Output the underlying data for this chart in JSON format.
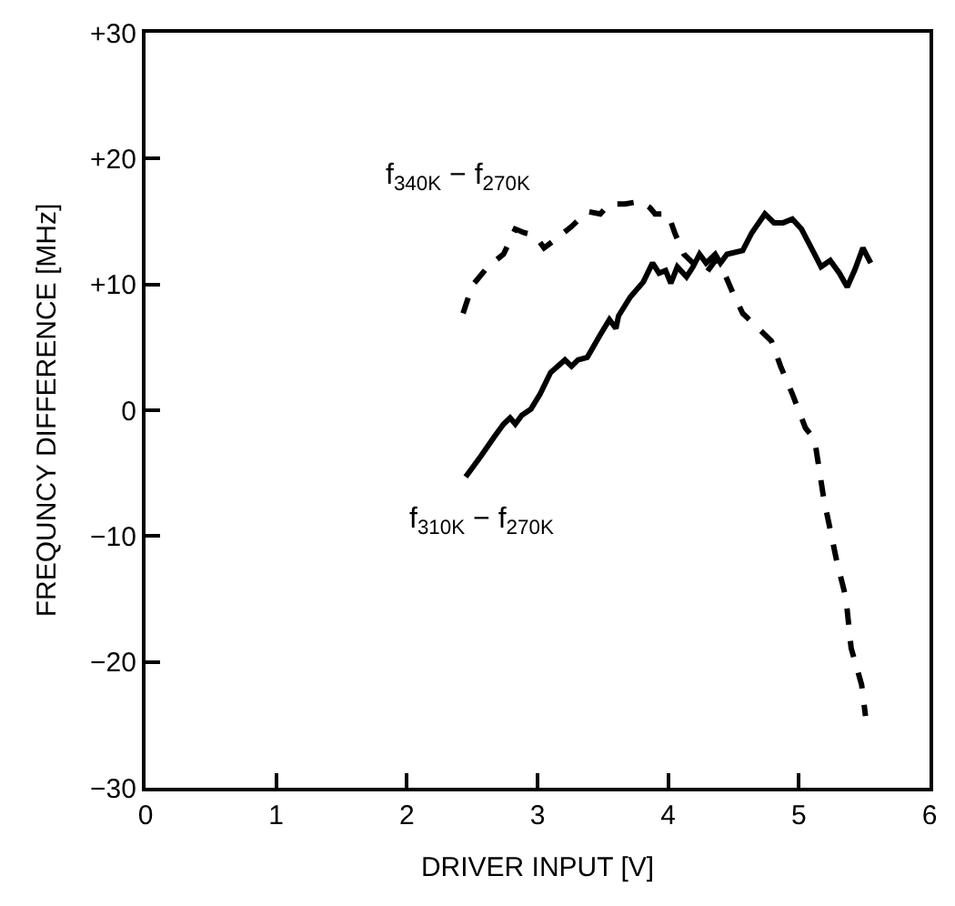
{
  "chart_data": {
    "type": "line",
    "xlabel": "DRIVER INPUT [V]",
    "ylabel": "FREQUNCY DIFFERENCE [MHz]",
    "xlim": [
      0,
      6
    ],
    "xticks": [
      0,
      1,
      2,
      3,
      4,
      5,
      6
    ],
    "ylim": [
      -30,
      30
    ],
    "yticks": [
      {
        "value": 30,
        "label": "+30"
      },
      {
        "value": 20,
        "label": "+20"
      },
      {
        "value": 10,
        "label": "+10"
      },
      0,
      {
        "value": -10,
        "label": "−10"
      },
      {
        "value": -20,
        "label": "−20"
      },
      {
        "value": -30,
        "label": "−30"
      }
    ],
    "marker": "none",
    "series": [
      {
        "color": "#000000",
        "line_style": "dashed",
        "x": [
          2.43,
          2.5,
          2.62,
          2.74,
          2.83,
          2.9,
          2.98,
          3.05,
          3.14,
          3.26,
          3.38,
          3.48,
          3.55,
          3.67,
          3.79,
          3.86,
          3.9,
          4.0,
          4.05,
          4.12,
          4.19,
          4.29,
          4.36,
          4.43,
          4.5,
          4.57,
          4.69,
          4.79,
          4.86,
          4.95,
          5.05,
          5.12,
          5.19,
          5.29,
          5.36,
          5.4,
          5.48,
          5.51
        ],
        "values": [
          7.7,
          9.9,
          11.4,
          12.4,
          14.4,
          14.1,
          13.9,
          12.9,
          13.6,
          14.6,
          15.8,
          15.6,
          16.4,
          16.4,
          16.6,
          16.1,
          15.6,
          15.6,
          14.1,
          12.4,
          11.7,
          10.9,
          11.9,
          10.9,
          9.2,
          7.7,
          6.5,
          5.5,
          3.5,
          1.3,
          -1.4,
          -2.3,
          -7.0,
          -12.0,
          -14.9,
          -18.9,
          -21.8,
          -24.3
        ]
      },
      {
        "color": "#000000",
        "line_style": "solid",
        "x": [
          2.45,
          2.57,
          2.67,
          2.74,
          2.79,
          2.83,
          2.88,
          2.95,
          3.02,
          3.1,
          3.21,
          3.26,
          3.31,
          3.38,
          3.48,
          3.55,
          3.6,
          3.62,
          3.71,
          3.81,
          3.88,
          3.93,
          3.98,
          4.02,
          4.07,
          4.14,
          4.19,
          4.24,
          4.29,
          4.36,
          4.4,
          4.45,
          4.57,
          4.64,
          4.74,
          4.81,
          4.88,
          4.95,
          5.02,
          5.12,
          5.17,
          5.24,
          5.31,
          5.37,
          5.43,
          5.49,
          5.55
        ],
        "values": [
          -5.3,
          -3.6,
          -2.1,
          -1.1,
          -0.6,
          -1.1,
          -0.4,
          0.1,
          1.3,
          3.0,
          4.0,
          3.5,
          4.0,
          4.2,
          6.0,
          7.2,
          6.5,
          7.5,
          9.0,
          10.2,
          11.7,
          10.9,
          11.1,
          10.1,
          11.4,
          10.6,
          11.4,
          12.4,
          11.7,
          12.4,
          11.7,
          12.4,
          12.7,
          14.1,
          15.6,
          14.9,
          14.9,
          15.2,
          14.4,
          12.4,
          11.4,
          11.9,
          10.9,
          9.8,
          11.2,
          12.9,
          11.7
        ]
      }
    ],
    "annotations": [
      "f$_{340K}$ − f$_{270K}$",
      "f$_{310K}$ − f$_{270K}$"
    ]
  }
}
